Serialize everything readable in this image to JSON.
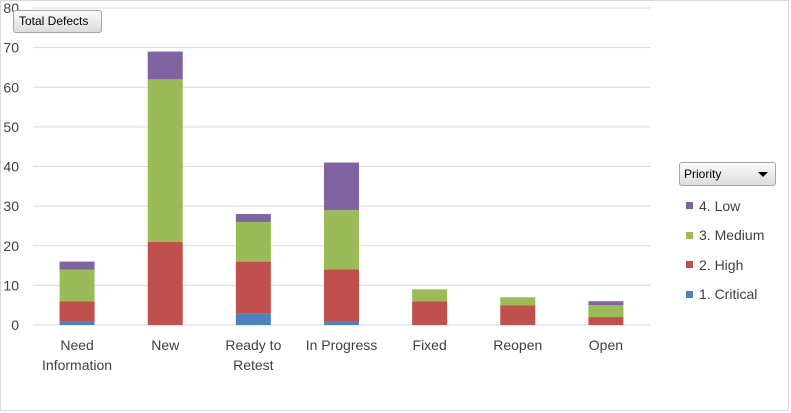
{
  "chart_data": {
    "type": "bar",
    "stacked": true,
    "title": "",
    "xlabel": "",
    "ylabel": "",
    "ylim": [
      0,
      80
    ],
    "yticks": [
      0,
      10,
      20,
      30,
      40,
      50,
      60,
      70,
      80
    ],
    "grid": true,
    "legend_position": "right",
    "categories": [
      [
        "Need",
        "Information"
      ],
      [
        "New"
      ],
      [
        "Ready to",
        "Retest"
      ],
      [
        "In Progress"
      ],
      [
        "Fixed"
      ],
      [
        "Reopen"
      ],
      [
        "Open"
      ]
    ],
    "series": [
      {
        "name": "1. Critical",
        "color": "#4f81bd",
        "values": [
          1,
          0,
          3,
          1,
          0,
          0,
          0
        ]
      },
      {
        "name": "2. High",
        "color": "#c0504d",
        "values": [
          5,
          21,
          13,
          13,
          6,
          5,
          2
        ]
      },
      {
        "name": "3. Medium",
        "color": "#9bbb59",
        "values": [
          8,
          41,
          10,
          15,
          3,
          2,
          3
        ]
      },
      {
        "name": "4. Low",
        "color": "#8064a2",
        "values": [
          2,
          7,
          2,
          12,
          0,
          0,
          1
        ]
      }
    ]
  },
  "buttons": {
    "values_field": "Total Defects",
    "legend_field": "Priority"
  },
  "legend": {
    "items": [
      {
        "label": "4. Low",
        "color": "#8064a2"
      },
      {
        "label": "3. Medium",
        "color": "#9bbb59"
      },
      {
        "label": "2. High",
        "color": "#c0504d"
      },
      {
        "label": "1. Critical",
        "color": "#4f81bd"
      }
    ]
  }
}
